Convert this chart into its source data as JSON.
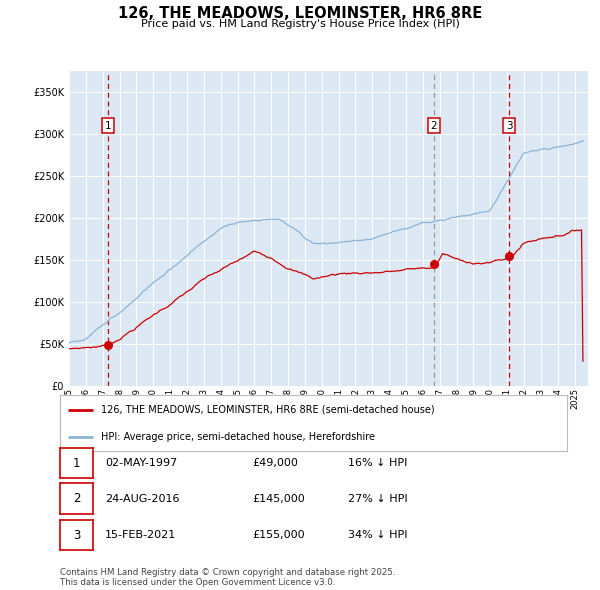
{
  "title": "126, THE MEADOWS, LEOMINSTER, HR6 8RE",
  "subtitle": "Price paid vs. HM Land Registry's House Price Index (HPI)",
  "plot_bg_color": "#dce9f5",
  "grid_color": "#ffffff",
  "red_line_color": "#cc0000",
  "blue_line_color": "#8ab4d8",
  "sale_marker_color": "#cc0000",
  "x_start_year": 1995,
  "x_end_year": 2025,
  "y_min": 0,
  "y_max": 375000,
  "y_ticks": [
    0,
    50000,
    100000,
    150000,
    200000,
    250000,
    300000,
    350000
  ],
  "sale1_year": 1997.33,
  "sale1_price": 49000,
  "sale1_label": "1",
  "sale1_date": "02-MAY-1997",
  "sale1_hpi_diff": "16% ↓ HPI",
  "sale2_year": 2016.65,
  "sale2_price": 145000,
  "sale2_label": "2",
  "sale2_date": "24-AUG-2016",
  "sale2_hpi_diff": "27% ↓ HPI",
  "sale3_year": 2021.12,
  "sale3_price": 155000,
  "sale3_label": "3",
  "sale3_date": "15-FEB-2021",
  "sale3_hpi_diff": "34% ↓ HPI",
  "legend_label_red": "126, THE MEADOWS, LEOMINSTER, HR6 8RE (semi-detached house)",
  "legend_label_blue": "HPI: Average price, semi-detached house, Herefordshire",
  "footnote": "Contains HM Land Registry data © Crown copyright and database right 2025.\nThis data is licensed under the Open Government Licence v3.0."
}
